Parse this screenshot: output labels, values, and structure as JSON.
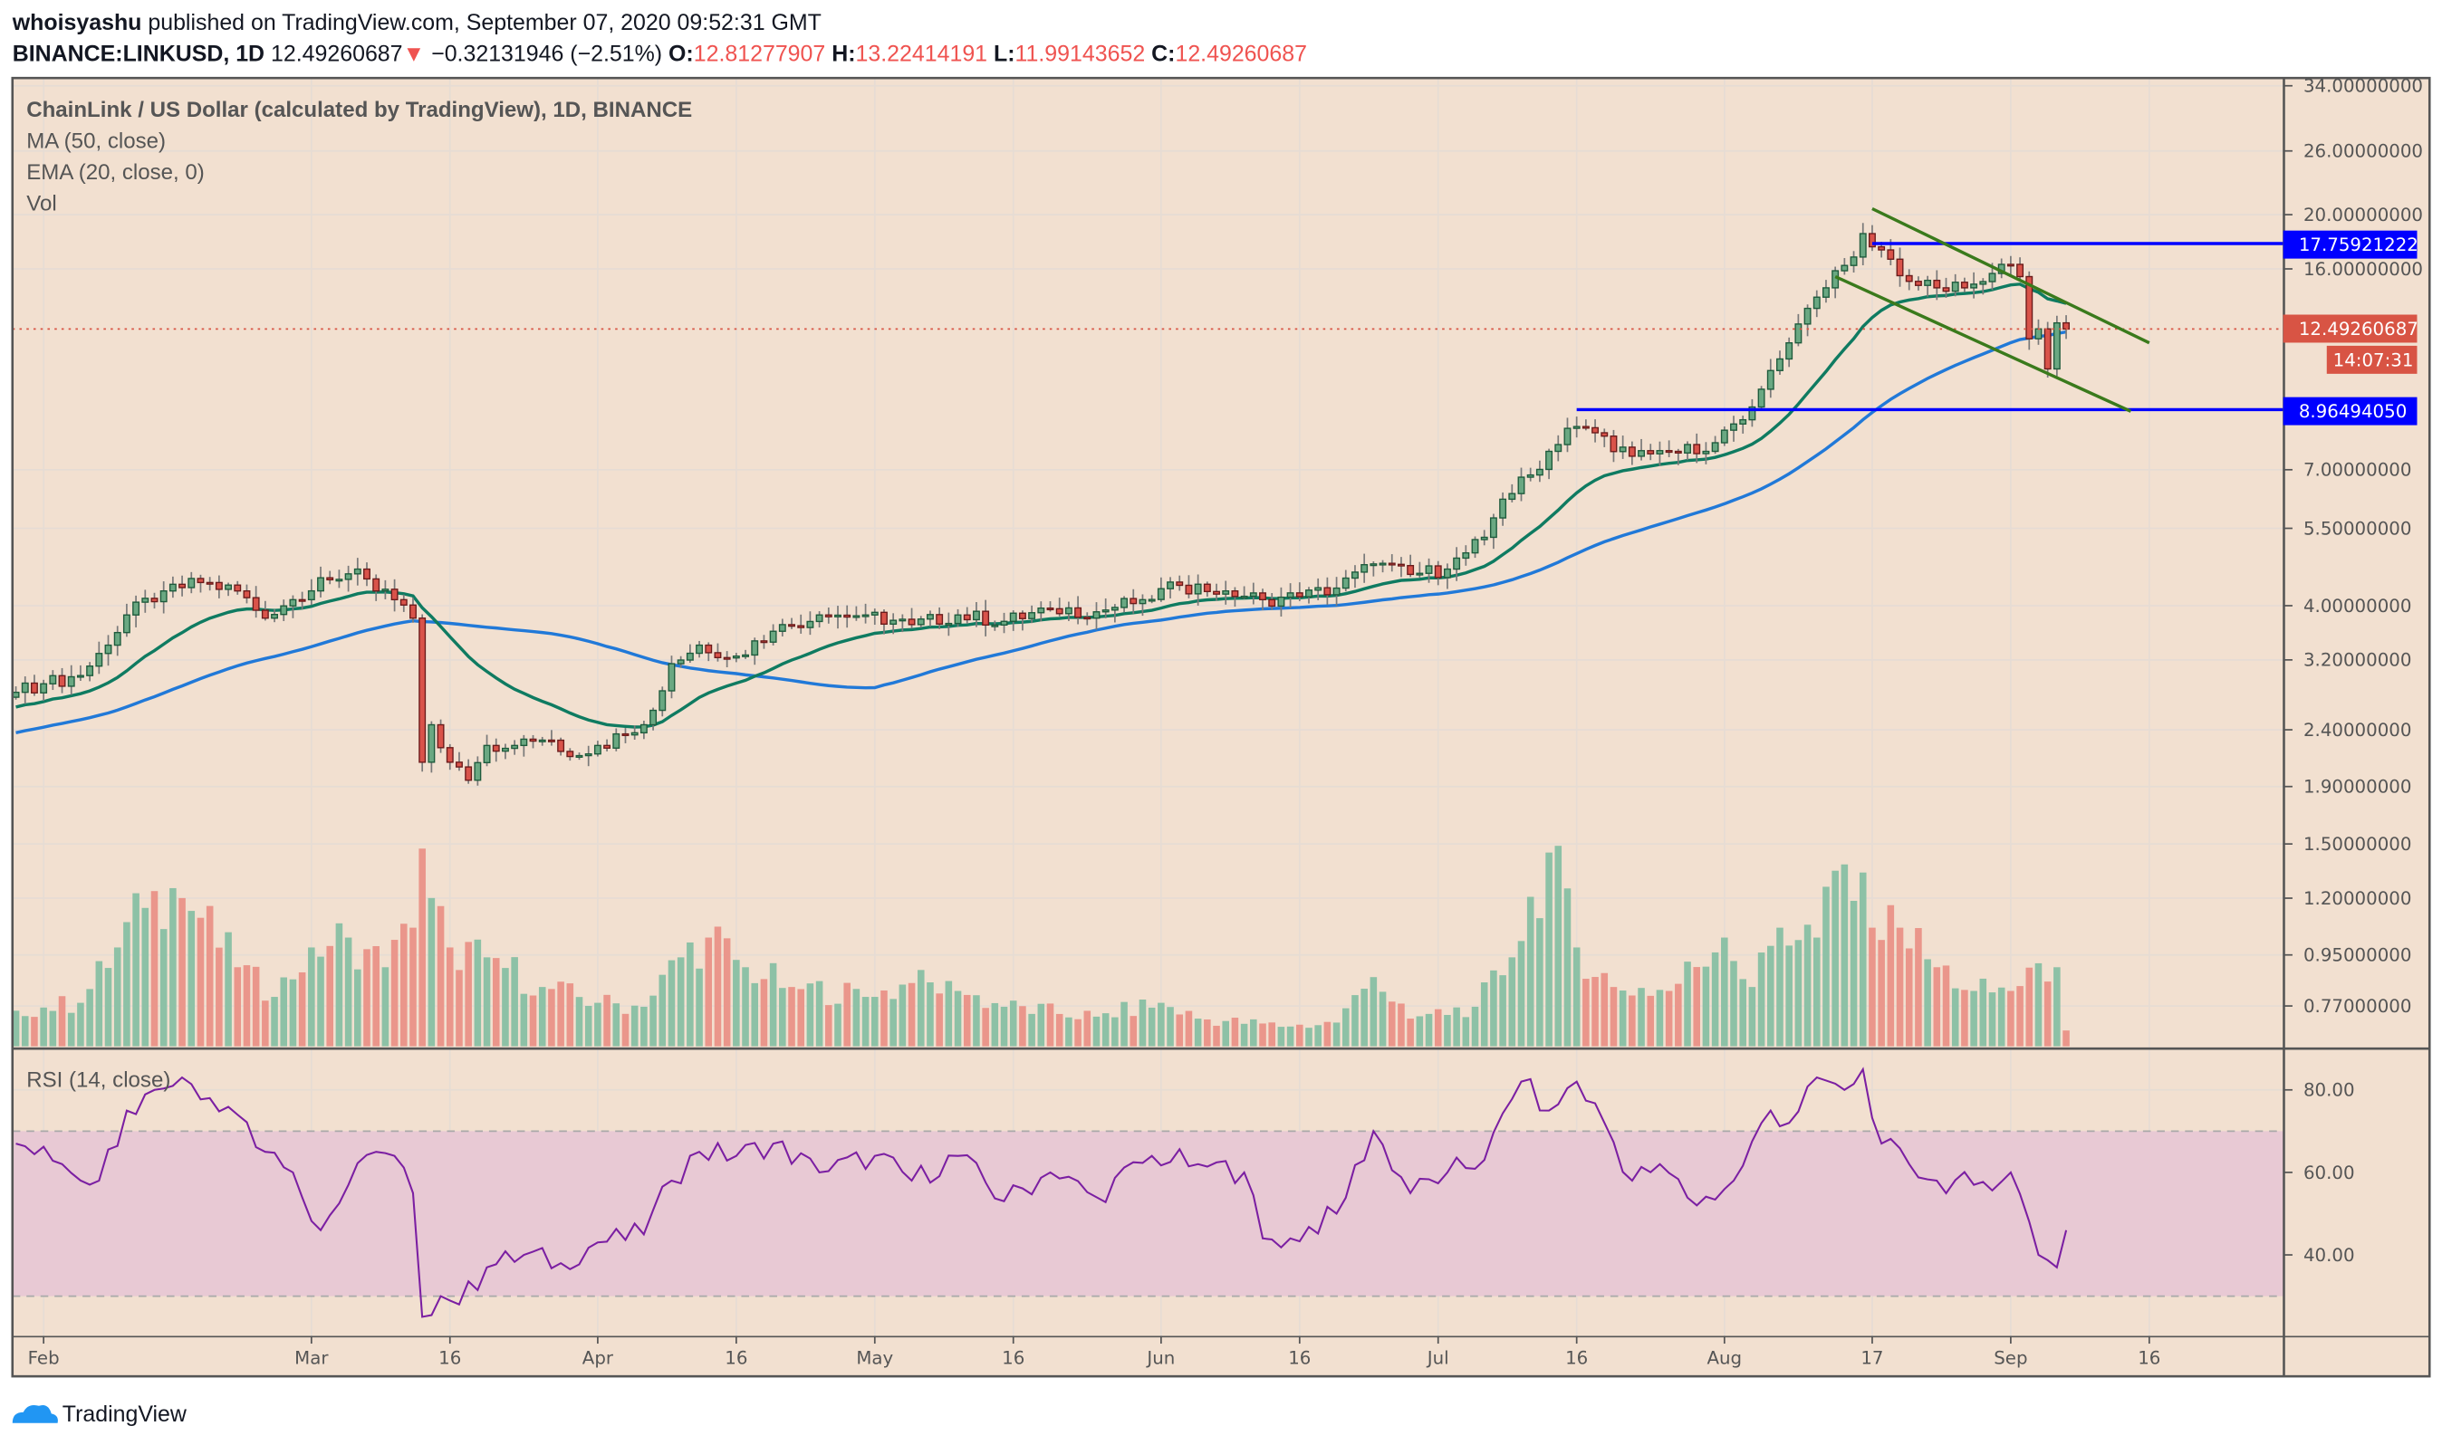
{
  "header": {
    "author": "whoisyashu",
    "published": "published on TradingView.com, September 07, 2020 09:52:31 GMT",
    "symbol": "BINANCE:LINKUSD, 1D",
    "last": "12.49260687",
    "change": "−0.32131946 (−2.51%)",
    "o_label": "O:",
    "o": "12.81277907",
    "h_label": "H:",
    "h": "13.22414191",
    "l_label": "L:",
    "l": "11.99143652",
    "c_label": "C:",
    "c": "12.49260687",
    "down_arrow_icon": "triangle-down"
  },
  "legend": {
    "title": "ChainLink / US Dollar (calculated by TradingView), 1D, BINANCE",
    "ma": "MA (50, close)",
    "ema": "EMA (20, close, 0)",
    "vol": "Vol",
    "rsi": "RSI (14, close)"
  },
  "price_axis": {
    "ticks": [
      "34.00000000",
      "26.00000000",
      "20.00000000",
      "16.00000000",
      "7.00000000",
      "5.50000000",
      "4.00000000",
      "3.20000000",
      "2.40000000",
      "1.90000000",
      "1.50000000",
      "1.20000000",
      "0.95000000",
      "0.77000000"
    ],
    "tick_values": [
      34,
      26,
      20,
      16,
      7,
      5.5,
      4,
      3.2,
      2.4,
      1.9,
      1.5,
      1.2,
      0.95,
      0.77
    ],
    "scale": "log",
    "resistance_label": "17.75921222",
    "resistance_value": 17.75921222,
    "support_label": "8.96494050",
    "support_value": 8.9649405,
    "last_label": "12.49260687",
    "countdown": "14:07:31"
  },
  "rsi_axis": {
    "ticks": [
      "80.00",
      "60.00",
      "40.00"
    ],
    "tick_values": [
      80,
      60,
      40
    ],
    "band": [
      30,
      70
    ]
  },
  "time_axis": {
    "labels": [
      "Feb",
      "Mar",
      "16",
      "Apr",
      "16",
      "May",
      "16",
      "Jun",
      "16",
      "Jul",
      "16",
      "Aug",
      "17",
      "Sep",
      "16"
    ],
    "dates": [
      "2020-02-01",
      "2020-03-01",
      "2020-03-16",
      "2020-04-01",
      "2020-04-16",
      "2020-05-01",
      "2020-05-16",
      "2020-06-01",
      "2020-06-16",
      "2020-07-01",
      "2020-07-16",
      "2020-08-01",
      "2020-08-17",
      "2020-09-01",
      "2020-09-16"
    ]
  },
  "footer": {
    "brand": "TradingView",
    "logo_icon": "tradingview-cloud"
  },
  "colors": {
    "background": "#f2e0d0",
    "up": "#6aa882",
    "up_border": "#1e5b3c",
    "down": "#d9534a",
    "down_border": "#6b1b1b",
    "vol_up": "#8dc1a6",
    "vol_down": "#ea968b",
    "ema": "#0f7b61",
    "ma": "#2179d8",
    "rsi": "#7b1fa2",
    "rsi_band": "#e8c9d4",
    "hline": "#0000ff",
    "channel": "#3a7a1c",
    "last_price": "#d85444"
  },
  "chart_data": {
    "type": "candlestick",
    "closes": [
      [
        "2020-01-29",
        2.8
      ],
      [
        "2020-02-01",
        2.9
      ],
      [
        "2020-02-05",
        3.0
      ],
      [
        "2020-02-08",
        3.4
      ],
      [
        "2020-02-10",
        3.85
      ],
      [
        "2020-02-14",
        4.25
      ],
      [
        "2020-02-18",
        4.4
      ],
      [
        "2020-02-22",
        4.25
      ],
      [
        "2020-02-25",
        3.8
      ],
      [
        "2020-02-28",
        4.1
      ],
      [
        "2020-03-03",
        4.45
      ],
      [
        "2020-03-06",
        4.65
      ],
      [
        "2020-03-08",
        4.25
      ],
      [
        "2020-03-10",
        4.1
      ],
      [
        "2020-03-12",
        3.8
      ],
      [
        "2020-03-13",
        2.1
      ],
      [
        "2020-03-14",
        2.45
      ],
      [
        "2020-03-16",
        2.1
      ],
      [
        "2020-03-18",
        1.95
      ],
      [
        "2020-03-20",
        2.25
      ],
      [
        "2020-03-23",
        2.25
      ],
      [
        "2020-03-26",
        2.3
      ],
      [
        "2020-03-29",
        2.15
      ],
      [
        "2020-04-01",
        2.25
      ],
      [
        "2020-04-04",
        2.35
      ],
      [
        "2020-04-07",
        2.6
      ],
      [
        "2020-04-09",
        3.15
      ],
      [
        "2020-04-12",
        3.4
      ],
      [
        "2020-04-16",
        3.25
      ],
      [
        "2020-04-20",
        3.6
      ],
      [
        "2020-04-25",
        3.85
      ],
      [
        "2020-04-30",
        3.85
      ],
      [
        "2020-05-05",
        3.7
      ],
      [
        "2020-05-10",
        3.85
      ],
      [
        "2020-05-15",
        3.75
      ],
      [
        "2020-05-20",
        3.95
      ],
      [
        "2020-05-25",
        3.9
      ],
      [
        "2020-05-30",
        4.1
      ],
      [
        "2020-06-03",
        4.35
      ],
      [
        "2020-06-08",
        4.25
      ],
      [
        "2020-06-12",
        4.1
      ],
      [
        "2020-06-16",
        4.15
      ],
      [
        "2020-06-20",
        4.3
      ],
      [
        "2020-06-24",
        4.75
      ],
      [
        "2020-06-28",
        4.55
      ],
      [
        "2020-07-02",
        4.65
      ],
      [
        "2020-07-06",
        5.3
      ],
      [
        "2020-07-08",
        6.2
      ],
      [
        "2020-07-11",
        6.85
      ],
      [
        "2020-07-13",
        7.55
      ],
      [
        "2020-07-15",
        8.3
      ],
      [
        "2020-07-18",
        8.15
      ],
      [
        "2020-07-22",
        7.4
      ],
      [
        "2020-07-26",
        7.55
      ],
      [
        "2020-07-30",
        7.55
      ],
      [
        "2020-08-02",
        8.45
      ],
      [
        "2020-08-05",
        9.75
      ],
      [
        "2020-08-08",
        11.8
      ],
      [
        "2020-08-10",
        13.6
      ],
      [
        "2020-08-12",
        14.8
      ],
      [
        "2020-08-15",
        16.8
      ],
      [
        "2020-08-16",
        18.5
      ],
      [
        "2020-08-18",
        17.3
      ],
      [
        "2020-08-21",
        15.2
      ],
      [
        "2020-08-24",
        14.8
      ],
      [
        "2020-08-27",
        14.8
      ],
      [
        "2020-08-30",
        15.7
      ],
      [
        "2020-09-01",
        16.3
      ],
      [
        "2020-09-02",
        15.5
      ],
      [
        "2020-09-03",
        12.0
      ],
      [
        "2020-09-04",
        12.5
      ],
      [
        "2020-09-05",
        10.6
      ],
      [
        "2020-09-06",
        12.81
      ],
      [
        "2020-09-07",
        12.49
      ]
    ],
    "last_bar": {
      "open": 12.81277907,
      "high": 13.22414191,
      "low": 11.99143652,
      "close": 12.49260687
    },
    "volume_relative": [
      [
        "2020-01-29",
        18
      ],
      [
        "2020-02-05",
        22
      ],
      [
        "2020-02-09",
        50
      ],
      [
        "2020-02-12",
        70
      ],
      [
        "2020-02-15",
        80
      ],
      [
        "2020-02-18",
        65
      ],
      [
        "2020-02-22",
        40
      ],
      [
        "2020-02-26",
        25
      ],
      [
        "2020-03-01",
        50
      ],
      [
        "2020-03-05",
        55
      ],
      [
        "2020-03-09",
        40
      ],
      [
        "2020-03-12",
        60
      ],
      [
        "2020-03-13",
        100
      ],
      [
        "2020-03-14",
        75
      ],
      [
        "2020-03-16",
        50
      ],
      [
        "2020-03-20",
        45
      ],
      [
        "2020-03-26",
        30
      ],
      [
        "2020-04-01",
        22
      ],
      [
        "2020-04-06",
        20
      ],
      [
        "2020-04-10",
        45
      ],
      [
        "2020-04-13",
        55
      ],
      [
        "2020-04-17",
        40
      ],
      [
        "2020-04-22",
        30
      ],
      [
        "2020-05-01",
        25
      ],
      [
        "2020-05-05",
        32
      ],
      [
        "2020-05-10",
        28
      ],
      [
        "2020-05-15",
        20
      ],
      [
        "2020-05-25",
        15
      ],
      [
        "2020-06-01",
        22
      ],
      [
        "2020-06-05",
        14
      ],
      [
        "2020-06-15",
        10
      ],
      [
        "2020-06-20",
        12
      ],
      [
        "2020-06-24",
        35
      ],
      [
        "2020-06-28",
        14
      ],
      [
        "2020-07-05",
        20
      ],
      [
        "2020-07-09",
        45
      ],
      [
        "2020-07-13",
        98
      ],
      [
        "2020-07-16",
        50
      ],
      [
        "2020-07-20",
        30
      ],
      [
        "2020-07-26",
        28
      ],
      [
        "2020-08-01",
        55
      ],
      [
        "2020-08-04",
        30
      ],
      [
        "2020-08-07",
        60
      ],
      [
        "2020-08-11",
        55
      ],
      [
        "2020-08-14",
        92
      ],
      [
        "2020-08-17",
        60
      ],
      [
        "2020-08-20",
        60
      ],
      [
        "2020-08-24",
        40
      ],
      [
        "2020-08-28",
        28
      ],
      [
        "2020-09-01",
        28
      ],
      [
        "2020-09-04",
        42
      ],
      [
        "2020-09-06",
        40
      ],
      [
        "2020-09-07",
        8
      ]
    ],
    "rsi": [
      [
        "2020-01-29",
        67
      ],
      [
        "2020-02-03",
        62
      ],
      [
        "2020-02-07",
        58
      ],
      [
        "2020-02-10",
        75
      ],
      [
        "2020-02-13",
        80
      ],
      [
        "2020-02-16",
        83
      ],
      [
        "2020-02-19",
        78
      ],
      [
        "2020-02-22",
        74
      ],
      [
        "2020-02-25",
        65
      ],
      [
        "2020-02-28",
        60
      ],
      [
        "2020-03-02",
        46
      ],
      [
        "2020-03-05",
        57
      ],
      [
        "2020-03-08",
        65
      ],
      [
        "2020-03-10",
        64
      ],
      [
        "2020-03-12",
        55
      ],
      [
        "2020-03-13",
        25
      ],
      [
        "2020-03-15",
        30
      ],
      [
        "2020-03-17",
        28
      ],
      [
        "2020-03-20",
        37
      ],
      [
        "2020-03-24",
        40
      ],
      [
        "2020-03-28",
        38
      ],
      [
        "2020-04-01",
        43
      ],
      [
        "2020-04-06",
        45
      ],
      [
        "2020-04-09",
        58
      ],
      [
        "2020-04-12",
        65
      ],
      [
        "2020-04-16",
        64
      ],
      [
        "2020-04-20",
        67
      ],
      [
        "2020-04-25",
        60
      ],
      [
        "2020-05-01",
        64
      ],
      [
        "2020-05-05",
        58
      ],
      [
        "2020-05-10",
        64
      ],
      [
        "2020-05-15",
        53
      ],
      [
        "2020-05-20",
        60
      ],
      [
        "2020-05-25",
        54
      ],
      [
        "2020-05-31",
        64
      ],
      [
        "2020-06-05",
        62
      ],
      [
        "2020-06-10",
        60
      ],
      [
        "2020-06-12",
        44
      ],
      [
        "2020-06-15",
        44
      ],
      [
        "2020-06-20",
        50
      ],
      [
        "2020-06-24",
        70
      ],
      [
        "2020-06-28",
        55
      ],
      [
        "2020-07-02",
        60
      ],
      [
        "2020-07-06",
        63
      ],
      [
        "2020-07-10",
        82
      ],
      [
        "2020-07-13",
        75
      ],
      [
        "2020-07-16",
        82
      ],
      [
        "2020-07-19",
        72
      ],
      [
        "2020-07-22",
        58
      ],
      [
        "2020-07-25",
        62
      ],
      [
        "2020-07-29",
        52
      ],
      [
        "2020-08-02",
        58
      ],
      [
        "2020-08-06",
        75
      ],
      [
        "2020-08-08",
        72
      ],
      [
        "2020-08-11",
        83
      ],
      [
        "2020-08-14",
        80
      ],
      [
        "2020-08-16",
        85
      ],
      [
        "2020-08-18",
        67
      ],
      [
        "2020-08-21",
        62
      ],
      [
        "2020-08-24",
        58
      ],
      [
        "2020-08-28",
        57
      ],
      [
        "2020-09-01",
        60
      ],
      [
        "2020-09-03",
        48
      ],
      [
        "2020-09-04",
        40
      ],
      [
        "2020-09-06",
        37
      ],
      [
        "2020-09-07",
        46
      ]
    ],
    "channel": {
      "upper": [
        [
          "2020-08-17",
          20.5
        ],
        [
          "2020-09-16",
          11.8
        ]
      ],
      "lower": [
        [
          "2020-08-13",
          15.5
        ],
        [
          "2020-09-14",
          8.9
        ]
      ]
    },
    "resistance": {
      "from": "2020-08-17",
      "value": 17.75921222
    },
    "support": {
      "from": "2020-07-16",
      "value": 8.9649405
    }
  }
}
